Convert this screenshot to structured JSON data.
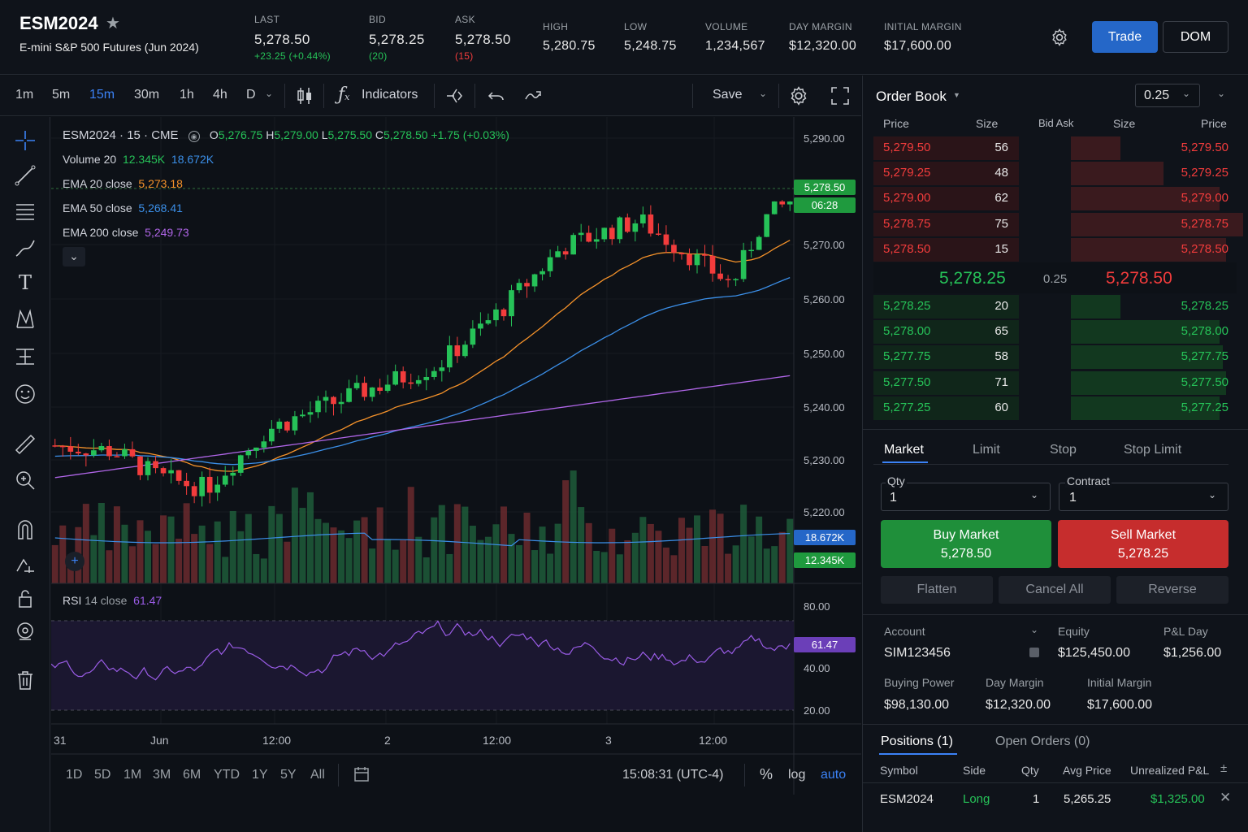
{
  "header": {
    "symbol": "ESM2024",
    "description": "E-mini S&P 500 Futures (Jun 2024)",
    "last": {
      "label": "LAST",
      "value": "5,278.50",
      "change": "+23.25 (+0.44%)"
    },
    "bid": {
      "label": "BID",
      "value": "5,278.25",
      "size": "(20)"
    },
    "ask": {
      "label": "ASK",
      "value": "5,278.50",
      "size": "(15)"
    },
    "high": {
      "label": "HIGH",
      "value": "5,280.75"
    },
    "low": {
      "label": "LOW",
      "value": "5,248.75"
    },
    "volume": {
      "label": "VOLUME",
      "value": "1,234,567"
    },
    "day_margin": {
      "label": "DAY MARGIN",
      "value": "$12,320.00"
    },
    "initial_margin": {
      "label": "INITIAL MARGIN",
      "value": "$17,600.00"
    },
    "trade_label": "Trade",
    "dom_label": "DOM"
  },
  "toolbar": {
    "timeframes": [
      "1m",
      "5m",
      "15m",
      "30m",
      "1h",
      "4h",
      "D"
    ],
    "active_timeframe": "15m",
    "indicators_label": "Indicators",
    "save_label": "Save"
  },
  "legend": {
    "title": "ESM2024 · 15 · CME",
    "o_label": "O",
    "o": "5,276.75",
    "h_label": "H",
    "h": "5,279.00",
    "l_label": "L",
    "l": "5,275.50",
    "c_label": "C",
    "c": "5,278.50",
    "change": "+1.75 (+0.03%)",
    "volume_label": "Volume 20",
    "vol1": "12.345K",
    "vol2": "18.672K",
    "ema20_label": "EMA 20 close",
    "ema20": "5,273.18",
    "ema50_label": "EMA 50 close",
    "ema50": "5,268.41",
    "ema200_label": "EMA 200 close",
    "ema200": "5,249.73"
  },
  "price_axis": [
    "5,290.00",
    "5,270.00",
    "5,260.00",
    "5,250.00",
    "5,240.00",
    "5,230.00",
    "5,220.00"
  ],
  "price_tag": {
    "value": "5,278.50",
    "countdown": "06:28"
  },
  "volume_tags": {
    "avg": "18.672K",
    "current": "12.345K"
  },
  "rsi": {
    "label": "RSI",
    "params": "14 close",
    "value": "61.47",
    "axis": [
      "80.00",
      "40.00",
      "20.00"
    ]
  },
  "time_axis": [
    "31",
    "Jun",
    "12:00",
    "2",
    "12:00",
    "3",
    "12:00"
  ],
  "bottom": {
    "ranges": [
      "1D",
      "5D",
      "1M",
      "3M",
      "6M",
      "YTD",
      "1Y",
      "5Y",
      "All"
    ],
    "clock": "15:08:31 (UTC-4)",
    "pct": "%",
    "log": "log",
    "auto": "auto"
  },
  "order_book": {
    "title": "Order Book",
    "tick": "0.25",
    "headers": {
      "price": "Price",
      "size": "Size",
      "bid_ask": "Bid Ask",
      "size2": "Size",
      "price2": "Price"
    },
    "asks": [
      {
        "price": "5,279.50",
        "size": "56",
        "depth": 0.15
      },
      {
        "price": "5,279.25",
        "size": "48",
        "depth": 0.28
      },
      {
        "price": "5,279.00",
        "size": "62",
        "depth": 0.45
      },
      {
        "price": "5,278.75",
        "size": "75",
        "depth": 0.52
      },
      {
        "price": "5,278.50",
        "size": "15",
        "depth": 0.47
      }
    ],
    "bid": "5,278.25",
    "spread": "0.25",
    "ask": "5,278.50",
    "bids": [
      {
        "price": "5,278.25",
        "size": "20",
        "depth": 0.15
      },
      {
        "price": "5,278.00",
        "size": "65",
        "depth": 0.45
      },
      {
        "price": "5,277.75",
        "size": "58",
        "depth": 0.46
      },
      {
        "price": "5,277.50",
        "size": "71",
        "depth": 0.47
      },
      {
        "price": "5,277.25",
        "size": "60",
        "depth": 0.45
      }
    ]
  },
  "order_entry": {
    "tabs": [
      "Market",
      "Limit",
      "Stop",
      "Stop Limit"
    ],
    "qty_label": "Qty",
    "qty": "1",
    "contract_label": "Contract",
    "contract": "1",
    "buy_label": "Buy Market",
    "buy_price": "5,278.50",
    "sell_label": "Sell Market",
    "sell_price": "5,278.25",
    "flatten": "Flatten",
    "cancel_all": "Cancel All",
    "reverse": "Reverse"
  },
  "account": {
    "account_label": "Account",
    "account": "SIM123456",
    "equity_label": "Equity",
    "equity": "$125,450.00",
    "pnl_label": "P&L Day",
    "pnl": "$1,256.00",
    "bp_label": "Buying Power",
    "bp": "$98,130.00",
    "dm_label": "Day Margin",
    "dm": "$12,320.00",
    "im_label": "Initial Margin",
    "im": "$17,600.00"
  },
  "positions": {
    "tab1": "Positions (1)",
    "tab2": "Open Orders (0)",
    "headers": [
      "Symbol",
      "Side",
      "Qty",
      "Avg Price",
      "Unrealized P&L"
    ],
    "rows": [
      {
        "symbol": "ESM2024",
        "side": "Long",
        "qty": "1",
        "avg": "5,265.25",
        "pnl": "$1,325.00"
      }
    ]
  },
  "colors": {
    "up": "#26c258",
    "down": "#f23c3c",
    "accent": "#2567c8",
    "ema20": "#f5922a",
    "ema50": "#3b8fe8",
    "ema200": "#b066e8",
    "rsi": "#9a5ce6"
  }
}
